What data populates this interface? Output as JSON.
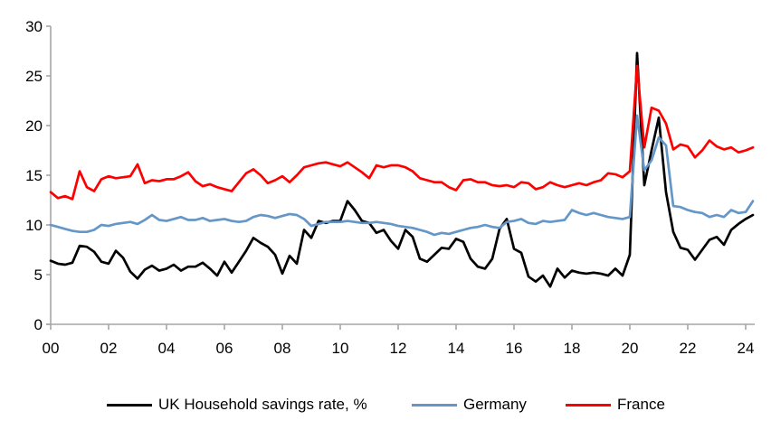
{
  "colors": {
    "background": "#FFFFFF",
    "axis": "#A6A6A6",
    "text": "#000000",
    "uk_line": "#000000",
    "germany_line": "#6496C8",
    "france_line": "#FF0000"
  },
  "chart_data": {
    "type": "line",
    "title": "",
    "x_start": "2000 Q1",
    "x_end": "2024 Q2",
    "points_per_year": 4,
    "grid": "off",
    "legend_position": "bottom",
    "x_axis": {
      "tick_labels": [
        "00",
        "02",
        "04",
        "06",
        "08",
        "10",
        "12",
        "14",
        "16",
        "18",
        "20",
        "22",
        "24"
      ]
    },
    "y_axis": {
      "min": 0,
      "max": 30,
      "tick_step": 5,
      "tick_labels": [
        "0",
        "5",
        "10",
        "15",
        "20",
        "25",
        "30"
      ]
    },
    "series": [
      {
        "name": "UK Household savings rate, %",
        "color": "#000000",
        "values": [
          6.4,
          6.1,
          6.0,
          6.2,
          7.9,
          7.8,
          7.3,
          6.3,
          6.1,
          7.4,
          6.7,
          5.3,
          4.6,
          5.5,
          5.9,
          5.4,
          5.6,
          6.0,
          5.4,
          5.8,
          5.8,
          6.2,
          5.6,
          4.9,
          6.3,
          5.2,
          6.3,
          7.4,
          8.7,
          8.2,
          7.8,
          7.0,
          5.1,
          6.9,
          6.1,
          9.5,
          8.7,
          10.4,
          10.2,
          10.4,
          10.4,
          12.4,
          11.5,
          10.4,
          10.2,
          9.2,
          9.5,
          8.4,
          7.6,
          9.5,
          8.8,
          6.6,
          6.3,
          7.0,
          7.7,
          7.6,
          8.6,
          8.3,
          6.6,
          5.8,
          5.6,
          6.6,
          9.6,
          10.6,
          7.6,
          7.2,
          4.8,
          4.3,
          4.9,
          3.8,
          5.6,
          4.7,
          5.4,
          5.2,
          5.1,
          5.2,
          5.1,
          4.9,
          5.6,
          4.9,
          7.0,
          27.3,
          14.0,
          17.5,
          20.8,
          13.3,
          9.3,
          7.7,
          7.5,
          6.5,
          7.5,
          8.5,
          8.8,
          8.0,
          9.5,
          10.1,
          10.6,
          11.0
        ]
      },
      {
        "name": "Germany",
        "color": "#6496C8",
        "values": [
          10.0,
          9.8,
          9.6,
          9.4,
          9.3,
          9.3,
          9.5,
          10.0,
          9.9,
          10.1,
          10.2,
          10.3,
          10.1,
          10.5,
          11.0,
          10.5,
          10.4,
          10.6,
          10.8,
          10.5,
          10.5,
          10.7,
          10.4,
          10.5,
          10.6,
          10.4,
          10.3,
          10.4,
          10.8,
          11.0,
          10.9,
          10.7,
          10.9,
          11.1,
          11.0,
          10.6,
          9.9,
          10.1,
          10.3,
          10.3,
          10.3,
          10.4,
          10.3,
          10.2,
          10.2,
          10.3,
          10.2,
          10.1,
          9.9,
          9.8,
          9.7,
          9.5,
          9.3,
          9.0,
          9.2,
          9.1,
          9.3,
          9.5,
          9.7,
          9.8,
          10.0,
          9.8,
          9.7,
          10.3,
          10.4,
          10.6,
          10.2,
          10.1,
          10.4,
          10.3,
          10.4,
          10.5,
          11.5,
          11.2,
          11.0,
          11.2,
          11.0,
          10.8,
          10.7,
          10.6,
          10.8,
          21.0,
          15.5,
          16.5,
          18.8,
          18.0,
          11.9,
          11.8,
          11.5,
          11.3,
          11.2,
          10.8,
          11.0,
          10.8,
          11.5,
          11.2,
          11.3,
          12.4
        ]
      },
      {
        "name": "France",
        "color": "#FF0000",
        "values": [
          13.3,
          12.7,
          12.9,
          12.6,
          15.4,
          13.8,
          13.4,
          14.6,
          14.9,
          14.7,
          14.8,
          14.9,
          16.1,
          14.2,
          14.5,
          14.4,
          14.6,
          14.6,
          14.9,
          15.3,
          14.4,
          13.9,
          14.1,
          13.8,
          13.6,
          13.4,
          14.3,
          15.2,
          15.6,
          15.0,
          14.2,
          14.5,
          14.9,
          14.3,
          15.0,
          15.8,
          16.0,
          16.2,
          16.3,
          16.1,
          15.9,
          16.3,
          15.8,
          15.3,
          14.7,
          16.0,
          15.8,
          16.0,
          16.0,
          15.8,
          15.4,
          14.7,
          14.5,
          14.3,
          14.3,
          13.8,
          13.5,
          14.5,
          14.6,
          14.3,
          14.3,
          14.0,
          13.9,
          14.0,
          13.8,
          14.3,
          14.2,
          13.6,
          13.8,
          14.3,
          14.0,
          13.8,
          14.0,
          14.2,
          14.0,
          14.3,
          14.5,
          15.2,
          15.1,
          14.8,
          15.4,
          26.0,
          17.8,
          21.8,
          21.5,
          20.2,
          17.6,
          18.1,
          17.9,
          16.8,
          17.5,
          18.5,
          17.9,
          17.6,
          17.8,
          17.3,
          17.5,
          17.8
        ]
      }
    ]
  },
  "legend": {
    "items": [
      {
        "label": "UK Household savings rate, %",
        "color": "#000000"
      },
      {
        "label": "Germany",
        "color": "#6496C8"
      },
      {
        "label": "France",
        "color": "#FF0000"
      }
    ]
  }
}
